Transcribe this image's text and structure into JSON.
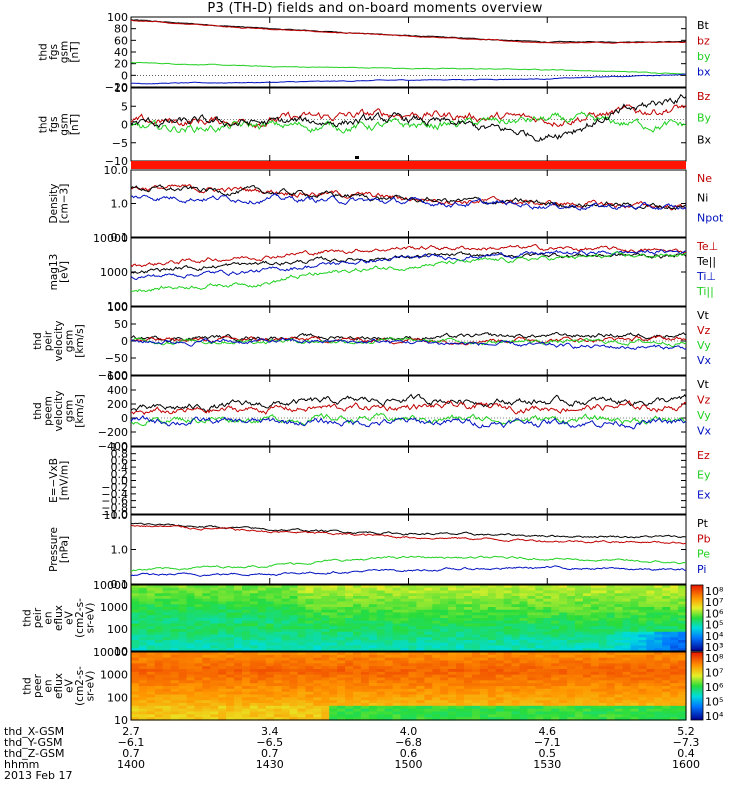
{
  "title": "P3 (TH-D) fields and on-board moments overview",
  "colors": {
    "black": "#000000",
    "red": "#c00000",
    "green": "#20d020",
    "blue": "#0010c0"
  },
  "chart_data": [
    {
      "type": "line",
      "ylabel": [
        "thd",
        "fgs",
        "gsm",
        "[nT]"
      ],
      "ylim": [
        -20,
        100
      ],
      "yticks": [
        "100",
        "80",
        "60",
        "40",
        "20",
        "0",
        "−20"
      ],
      "series": [
        {
          "name": "Bt",
          "color": "black",
          "x": [
            1400,
            1430,
            1500,
            1530,
            1600
          ],
          "values": [
            95,
            80,
            68,
            57,
            58
          ]
        },
        {
          "name": "bz",
          "color": "red",
          "x": [
            1400,
            1430,
            1500,
            1530,
            1600
          ],
          "values": [
            94,
            79,
            67,
            56,
            57
          ]
        },
        {
          "name": "by",
          "color": "green",
          "x": [
            1400,
            1430,
            1500,
            1530,
            1600
          ],
          "values": [
            22,
            15,
            12,
            10,
            3
          ]
        },
        {
          "name": "bx",
          "color": "blue",
          "x": [
            1400,
            1430,
            1500,
            1530,
            1600
          ],
          "values": [
            -14,
            -12,
            -8,
            -6,
            2
          ]
        }
      ]
    },
    {
      "type": "line",
      "ylabel": [
        "thd",
        "fgs",
        "gsm",
        "[nT]"
      ],
      "ylim": [
        -13,
        10
      ],
      "yticks": [
        "10",
        "5",
        "0",
        "−5",
        "−10"
      ],
      "series": [
        {
          "name": "Bz",
          "color": "red",
          "x": [
            1400,
            1430,
            1500,
            1530,
            1600
          ],
          "values": [
            -1,
            0,
            2,
            0,
            4
          ]
        },
        {
          "name": "By",
          "color": "green",
          "x": [
            1400,
            1430,
            1500,
            1530,
            1600
          ],
          "values": [
            -3,
            -2,
            -2,
            0,
            -2
          ]
        },
        {
          "name": "Bx",
          "color": "black",
          "x": [
            1400,
            1430,
            1500,
            1530,
            1600
          ],
          "values": [
            -1,
            -1,
            0,
            -5,
            8
          ]
        }
      ]
    },
    {
      "type": "line",
      "ylabel": [
        "Density",
        "[cm−3]"
      ],
      "scale": "log",
      "ylim": [
        0.1,
        10
      ],
      "yticks": [
        "10.0",
        "1.0",
        "0.1"
      ],
      "series": [
        {
          "name": "Ne",
          "color": "red",
          "x": [
            1400,
            1430,
            1500,
            1530,
            1600
          ],
          "values": [
            3,
            2.4,
            1.4,
            1.0,
            0.8
          ]
        },
        {
          "name": "Ni",
          "color": "black",
          "x": [
            1400,
            1430,
            1500,
            1530,
            1600
          ],
          "values": [
            2.8,
            2.2,
            1.3,
            1.0,
            0.8
          ]
        },
        {
          "name": "Npot",
          "color": "blue",
          "x": [
            1400,
            1430,
            1500,
            1530,
            1600
          ],
          "values": [
            1.6,
            1.4,
            1.1,
            0.9,
            0.7
          ]
        }
      ]
    },
    {
      "type": "line",
      "ylabel": [
        "mag13",
        "[eV]"
      ],
      "scale": "log",
      "ylim": [
        100,
        10000
      ],
      "yticks": [
        "10000",
        "1000",
        "100"
      ],
      "series": [
        {
          "name": "Te⊥",
          "color": "red",
          "x": [
            1400,
            1430,
            1500,
            1530,
            1600
          ],
          "values": [
            1500,
            3000,
            5200,
            5000,
            4000
          ]
        },
        {
          "name": "Te||",
          "color": "black",
          "x": [
            1400,
            1430,
            1500,
            1530,
            1600
          ],
          "values": [
            1000,
            1800,
            2800,
            3200,
            3000
          ]
        },
        {
          "name": "Ti⊥",
          "color": "blue",
          "x": [
            1400,
            1430,
            1500,
            1530,
            1600
          ],
          "values": [
            700,
            1100,
            2500,
            3500,
            4000
          ]
        },
        {
          "name": "Ti||",
          "color": "green",
          "x": [
            1400,
            1430,
            1500,
            1530,
            1600
          ],
          "values": [
            300,
            500,
            1500,
            2500,
            3200
          ]
        }
      ]
    },
    {
      "type": "line",
      "ylabel": [
        "thd",
        "peir",
        "velocity",
        "gsm",
        "[km/s]"
      ],
      "ylim": [
        -100,
        100
      ],
      "yticks": [
        "100",
        "50",
        "0",
        "−50",
        "−100"
      ],
      "series": [
        {
          "name": "Vt",
          "color": "black",
          "x": [
            1400,
            1430,
            1500,
            1530,
            1600
          ],
          "values": [
            8,
            12,
            10,
            15,
            20
          ]
        },
        {
          "name": "Vz",
          "color": "red",
          "x": [
            1400,
            1430,
            1500,
            1530,
            1600
          ],
          "values": [
            2,
            4,
            3,
            5,
            6
          ]
        },
        {
          "name": "Vy",
          "color": "green",
          "x": [
            1400,
            1430,
            1500,
            1530,
            1600
          ],
          "values": [
            0,
            1,
            0,
            -2,
            -3
          ]
        },
        {
          "name": "Vx",
          "color": "blue",
          "x": [
            1400,
            1430,
            1500,
            1530,
            1600
          ],
          "values": [
            -2,
            -1,
            -3,
            -15,
            -20
          ]
        }
      ]
    },
    {
      "type": "line",
      "ylabel": [
        "thd",
        "peem",
        "velocity",
        "gsm",
        "[km/s]"
      ],
      "ylim": [
        -400,
        600
      ],
      "yticks": [
        "600",
        "400",
        "200",
        "0",
        "−200",
        "−400"
      ],
      "series": [
        {
          "name": "Vt",
          "color": "black",
          "x": [
            1400,
            1430,
            1500,
            1530,
            1600
          ],
          "values": [
            110,
            200,
            270,
            230,
            250
          ]
        },
        {
          "name": "Vz",
          "color": "red",
          "x": [
            1400,
            1430,
            1500,
            1530,
            1600
          ],
          "values": [
            70,
            130,
            160,
            150,
            160
          ]
        },
        {
          "name": "Vy",
          "color": "green",
          "x": [
            1400,
            1430,
            1500,
            1530,
            1600
          ],
          "values": [
            -20,
            -10,
            -10,
            -20,
            -30
          ]
        },
        {
          "name": "Vx",
          "color": "blue",
          "x": [
            1400,
            1430,
            1500,
            1530,
            1600
          ],
          "values": [
            -40,
            -60,
            -60,
            -60,
            -70
          ]
        }
      ]
    },
    {
      "type": "line",
      "ylabel": [
        "E=−VxB",
        "[mV/m]"
      ],
      "ylim": [
        -1,
        1
      ],
      "yticks": [
        "1.0",
        "0.8",
        "0.6",
        "0.4",
        "0.2",
        "0.0",
        "−0.2",
        "−0.4",
        "−0.6",
        "−0.8",
        "−1.0"
      ],
      "series": [
        {
          "name": "Ez",
          "color": "red",
          "values": []
        },
        {
          "name": "Ey",
          "color": "green",
          "values": []
        },
        {
          "name": "Ex",
          "color": "blue",
          "values": []
        }
      ]
    },
    {
      "type": "line",
      "ylabel": [
        "Pressure",
        "[nPa]"
      ],
      "scale": "log",
      "ylim": [
        0.1,
        10
      ],
      "yticks": [
        "10.0",
        "1.0",
        "0.1"
      ],
      "series": [
        {
          "name": "Pt",
          "color": "black",
          "x": [
            1400,
            1430,
            1500,
            1530,
            1600
          ],
          "values": [
            5.5,
            3.8,
            2.9,
            2.5,
            2.3
          ]
        },
        {
          "name": "Pb",
          "color": "red",
          "x": [
            1400,
            1430,
            1500,
            1530,
            1600
          ],
          "values": [
            5.0,
            3.3,
            2.3,
            1.8,
            1.6
          ]
        },
        {
          "name": "Pe",
          "color": "green",
          "x": [
            1400,
            1430,
            1500,
            1530,
            1600
          ],
          "values": [
            0.25,
            0.35,
            0.6,
            0.55,
            0.4
          ]
        },
        {
          "name": "Pi",
          "color": "blue",
          "x": [
            1400,
            1430,
            1500,
            1530,
            1600
          ],
          "values": [
            0.18,
            0.2,
            0.25,
            0.3,
            0.25
          ]
        }
      ]
    },
    {
      "type": "heatmap",
      "ylabel": [
        "thd",
        "peir",
        "en",
        "eflux",
        "eV",
        "(cm2-s-",
        "sr-eV)"
      ],
      "scale": "log",
      "ylim": [
        10,
        20000
      ],
      "yticks": [
        "10000",
        "1000",
        "100",
        "10"
      ],
      "colorbar_ticks": [
        "10⁸",
        "10⁷",
        "10⁶",
        "10⁵",
        "10⁴",
        "10³"
      ],
      "description_rows": [
        {
          "energy": "high",
          "level": 0.65
        },
        {
          "energy": "mid",
          "level": 0.55
        },
        {
          "energy": "low",
          "level": 0.42
        }
      ]
    },
    {
      "type": "heatmap",
      "ylabel": [
        "thd",
        "peer",
        "en",
        "eflux",
        "eV",
        "(cm2-s-",
        "sr-eV)"
      ],
      "scale": "log",
      "ylim": [
        7,
        20000
      ],
      "yticks": [
        "10000",
        "1000",
        "100",
        "10"
      ],
      "colorbar_ticks": [
        "10⁸",
        "10⁷",
        "10⁶",
        "10⁵",
        "10⁴"
      ]
    }
  ],
  "xaxis": {
    "ticks": [
      {
        "x": "2.7",
        "y": "−6.1",
        "z": "0.7",
        "t": "1400"
      },
      {
        "x": "3.4",
        "y": "−6.5",
        "z": "0.7",
        "t": "1430"
      },
      {
        "x": "4.0",
        "y": "−6.8",
        "z": "0.6",
        "t": "1500"
      },
      {
        "x": "4.6",
        "y": "−7.1",
        "z": "0.5",
        "t": "1530"
      },
      {
        "x": "5.2",
        "y": "−7.3",
        "z": "0.4",
        "t": "1600"
      }
    ],
    "rowlabels": [
      "thd_X-GSM",
      "thd_Y-GSM",
      "thd_Z-GSM",
      "hhmm"
    ],
    "date": "2013 Feb 17"
  }
}
